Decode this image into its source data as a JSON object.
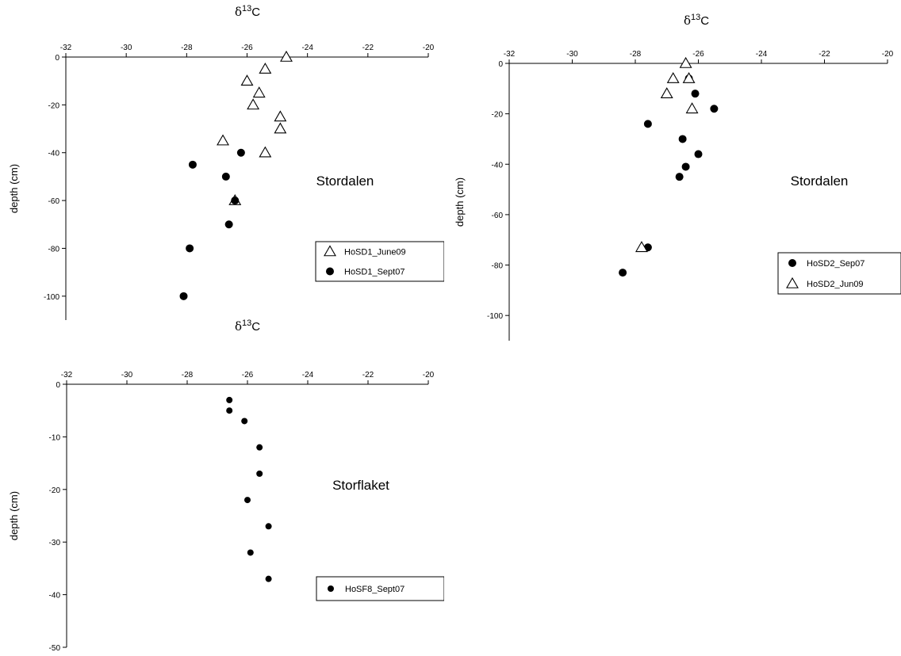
{
  "chart_data": [
    {
      "type": "scatter",
      "title": "δ13C",
      "title_symbol": "δ",
      "title_superscript": "13",
      "title_element": "C",
      "ylabel": "depth (cm)",
      "annotation": "Stordalen",
      "xlim": [
        -32,
        -20
      ],
      "ylim": [
        -110,
        0
      ],
      "xticks": [
        -32,
        -30,
        -28,
        -26,
        -24,
        -22,
        -20
      ],
      "yticks": [
        0,
        -20,
        -40,
        -60,
        -80,
        -100
      ],
      "grid": false,
      "legend_position": "right",
      "series": [
        {
          "name": "HoSD1_June09",
          "marker": "open-triangle",
          "points": [
            [
              -24.7,
              0
            ],
            [
              -25.4,
              -5
            ],
            [
              -26.0,
              -10
            ],
            [
              -25.6,
              -15
            ],
            [
              -25.8,
              -20
            ],
            [
              -24.9,
              -25
            ],
            [
              -24.9,
              -30
            ],
            [
              -26.8,
              -35
            ],
            [
              -25.4,
              -40
            ],
            [
              -26.4,
              -60
            ]
          ]
        },
        {
          "name": "HoSD1_Sept07",
          "marker": "filled-circle",
          "points": [
            [
              -26.2,
              -40
            ],
            [
              -27.8,
              -45
            ],
            [
              -26.7,
              -50
            ],
            [
              -26.4,
              -60
            ],
            [
              -26.6,
              -70
            ],
            [
              -27.9,
              -80
            ],
            [
              -28.1,
              -100
            ]
          ]
        }
      ]
    },
    {
      "type": "scatter",
      "title": "δ13C",
      "title_symbol": "δ",
      "title_superscript": "13",
      "title_element": "C",
      "ylabel": "depth (cm)",
      "annotation": "Stordalen",
      "xlim": [
        -32,
        -20
      ],
      "ylim": [
        -110,
        0
      ],
      "xticks": [
        -32,
        -30,
        -28,
        -26,
        -24,
        -22,
        -20
      ],
      "yticks": [
        0,
        -20,
        -40,
        -60,
        -80,
        -100
      ],
      "grid": false,
      "legend_position": "right",
      "series": [
        {
          "name": "HoSD2_Sep07",
          "marker": "filled-circle",
          "points": [
            [
              -26.3,
              -6
            ],
            [
              -26.1,
              -12
            ],
            [
              -25.5,
              -18
            ],
            [
              -27.6,
              -24
            ],
            [
              -26.5,
              -30
            ],
            [
              -26.0,
              -36
            ],
            [
              -26.4,
              -41
            ],
            [
              -26.6,
              -45
            ],
            [
              -27.6,
              -73
            ],
            [
              -28.4,
              -83
            ]
          ]
        },
        {
          "name": "HoSD2_Jun09",
          "marker": "open-triangle",
          "points": [
            [
              -26.4,
              0
            ],
            [
              -26.8,
              -6
            ],
            [
              -26.3,
              -6
            ],
            [
              -27.0,
              -12
            ],
            [
              -26.2,
              -18
            ],
            [
              -27.8,
              -73
            ]
          ]
        }
      ]
    },
    {
      "type": "scatter",
      "title": "δ13C",
      "title_symbol": "δ",
      "title_superscript": "13",
      "title_element": "C",
      "ylabel": "depth (cm)",
      "annotation": "Storflaket",
      "xlim": [
        -32,
        -20
      ],
      "ylim": [
        -50,
        0
      ],
      "xticks": [
        -32,
        -30,
        -28,
        -26,
        -24,
        -22,
        -20
      ],
      "yticks": [
        0,
        -10,
        -20,
        -30,
        -40,
        -50
      ],
      "grid": false,
      "legend_position": "right",
      "series": [
        {
          "name": "HoSF8_Sept07",
          "marker": "small-filled-circle",
          "points": [
            [
              -26.6,
              -3
            ],
            [
              -26.6,
              -5
            ],
            [
              -26.1,
              -7
            ],
            [
              -25.6,
              -12
            ],
            [
              -25.6,
              -17
            ],
            [
              -26.0,
              -22
            ],
            [
              -25.3,
              -27
            ],
            [
              -25.9,
              -32
            ],
            [
              -25.3,
              -37
            ]
          ]
        }
      ]
    }
  ]
}
